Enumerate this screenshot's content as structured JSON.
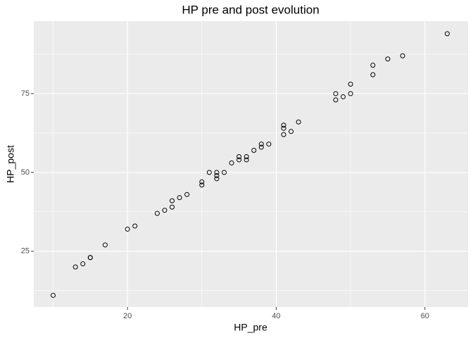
{
  "chart_data": {
    "type": "scatter",
    "title": "HP pre and post evolution",
    "x_label": "HP_pre",
    "y_label": "HP_post",
    "x": [
      10,
      13,
      14,
      15,
      15,
      17,
      20,
      21,
      24,
      25,
      26,
      26,
      27,
      28,
      30,
      30,
      31,
      32,
      32,
      32,
      33,
      34,
      35,
      35,
      36,
      36,
      37,
      38,
      38,
      39,
      41,
      41,
      41,
      42,
      43,
      48,
      48,
      49,
      50,
      50,
      53,
      53,
      55,
      57,
      63
    ],
    "y": [
      11,
      20,
      21,
      23,
      23,
      27,
      32,
      33,
      37,
      38,
      39,
      41,
      42,
      43,
      46,
      47,
      50,
      48,
      49,
      50,
      50,
      53,
      54,
      55,
      54,
      55,
      57,
      58,
      59,
      59,
      62,
      64,
      65,
      63,
      66,
      73,
      75,
      74,
      75,
      78,
      81,
      84,
      86,
      87,
      94
    ],
    "color": "#000000",
    "xlim": [
      7.4,
      65.8
    ],
    "ylim": [
      7.3,
      98
    ],
    "xticks": [
      20,
      40,
      60
    ],
    "yticks": [
      25,
      50,
      75
    ],
    "xminor": [
      10,
      30,
      50
    ],
    "yminor": [
      12.5,
      37.5,
      62.5,
      87.5
    ],
    "grid": true
  }
}
